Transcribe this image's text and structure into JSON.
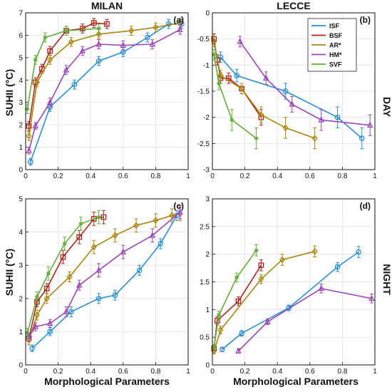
{
  "figure": {
    "ylabel": "SUHII (°C)",
    "xlabel": "Morphological Parameters",
    "day_label": "DAY",
    "night_label": "NIGHT"
  },
  "legend": [
    "ISF",
    "BSF",
    "AR*",
    "HM*",
    "SVF"
  ],
  "colors": {
    "ISF": "#2a8fd6",
    "BSF": "#a8271f",
    "AR*": "#a9860f",
    "HM*": "#9a46b5",
    "SVF": "#64ad3a"
  },
  "chart_data": [
    {
      "type": "line",
      "panel": "a",
      "title": "MILAN",
      "letter": "(a)",
      "xlim": [
        0,
        1
      ],
      "ylim": [
        0,
        7
      ],
      "xticks": [
        0,
        0.2,
        0.4,
        0.6,
        0.8,
        1
      ],
      "xtick_labels": [
        "0",
        "0.2",
        "0.4",
        "0.6",
        "0.8",
        "1"
      ],
      "yticks": [
        0,
        1,
        2,
        3,
        4,
        5,
        6,
        7
      ],
      "ytick_labels": [
        "0",
        "1",
        "2",
        "3",
        "4",
        "5",
        "6",
        "7"
      ],
      "series": [
        {
          "name": "ISF",
          "x": [
            0.03,
            0.15,
            0.3,
            0.45,
            0.6,
            0.75,
            0.88,
            0.96
          ],
          "y": [
            0.35,
            2.8,
            3.8,
            4.85,
            5.25,
            5.9,
            6.5,
            6.5
          ],
          "err": [
            0.15,
            0.2,
            0.2,
            0.2,
            0.2,
            0.2,
            0.2,
            0.2
          ]
        },
        {
          "name": "BSF",
          "x": [
            0.02,
            0.06,
            0.1,
            0.15,
            0.25,
            0.35,
            0.42,
            0.5
          ],
          "y": [
            1.95,
            3.9,
            4.5,
            5.3,
            6.2,
            6.3,
            6.55,
            6.5
          ],
          "err": [
            0.2,
            0.2,
            0.2,
            0.2,
            0.2,
            0.2,
            0.2,
            0.2
          ]
        },
        {
          "name": "AR*",
          "x": [
            0.02,
            0.07,
            0.15,
            0.28,
            0.45,
            0.65,
            0.8,
            0.95
          ],
          "y": [
            1.5,
            3.9,
            4.9,
            5.7,
            6.05,
            6.2,
            6.35,
            6.55
          ],
          "err": [
            0.2,
            0.2,
            0.2,
            0.2,
            0.2,
            0.2,
            0.2,
            0.2
          ]
        },
        {
          "name": "HM*",
          "x": [
            0.02,
            0.06,
            0.15,
            0.25,
            0.35,
            0.45,
            0.6,
            0.78,
            0.95
          ],
          "y": [
            0.85,
            1.95,
            3.0,
            4.45,
            5.3,
            5.6,
            5.55,
            5.6,
            6.25
          ],
          "err": [
            0.15,
            0.15,
            0.2,
            0.2,
            0.2,
            0.2,
            0.2,
            0.2,
            0.2
          ]
        },
        {
          "name": "SVF",
          "x": [
            0.01,
            0.06,
            0.12,
            0.25,
            0.45
          ],
          "y": [
            2.7,
            4.9,
            5.9,
            6.2,
            6.3
          ],
          "err": [
            0.2,
            0.2,
            0.2,
            0.2,
            0.2
          ]
        }
      ]
    },
    {
      "type": "line",
      "panel": "b",
      "title": "LECCE",
      "letter": "(b)",
      "xlim": [
        0,
        1
      ],
      "ylim": [
        -3,
        0
      ],
      "xticks": [
        0,
        0.2,
        0.4,
        0.6,
        0.8,
        1
      ],
      "xtick_labels": [
        "0",
        "0.2",
        "0.4",
        "0.6",
        "0.8",
        "1"
      ],
      "yticks": [
        -3,
        -2.5,
        -2,
        -1.5,
        -1,
        -0.5,
        0
      ],
      "ytick_labels": [
        "-3",
        "-2.5",
        "-2",
        "-1.5",
        "-1",
        "-0.5",
        "0"
      ],
      "series": [
        {
          "name": "ISF",
          "x": [
            0.05,
            0.15,
            0.45,
            0.77,
            0.92
          ],
          "y": [
            -0.85,
            -1.2,
            -1.5,
            -2.0,
            -2.4
          ],
          "err": [
            0.1,
            0.12,
            0.15,
            0.2,
            0.2
          ]
        },
        {
          "name": "BSF",
          "x": [
            0.01,
            0.03,
            0.05,
            0.1,
            0.18,
            0.3
          ],
          "y": [
            -0.5,
            -0.9,
            -1.25,
            -1.25,
            -1.45,
            -2.0
          ],
          "err": [
            0.1,
            0.1,
            0.1,
            0.1,
            0.1,
            0.15
          ]
        },
        {
          "name": "AR*",
          "x": [
            0.01,
            0.05,
            0.18,
            0.3,
            0.45,
            0.63
          ],
          "y": [
            -0.55,
            -1.2,
            -1.45,
            -1.95,
            -2.2,
            -2.4
          ],
          "err": [
            0.1,
            0.1,
            0.1,
            0.15,
            0.2,
            0.2
          ]
        },
        {
          "name": "HM*",
          "x": [
            0.17,
            0.33,
            0.49,
            0.67,
            0.97
          ],
          "y": [
            -0.55,
            -1.25,
            -1.75,
            -2.05,
            -2.15
          ],
          "err": [
            0.1,
            0.12,
            0.15,
            0.2,
            0.2
          ]
        },
        {
          "name": "SVF",
          "x": [
            0.01,
            0.04,
            0.12,
            0.27
          ],
          "y": [
            -0.8,
            -1.35,
            -2.05,
            -2.4
          ],
          "err": [
            0.1,
            0.12,
            0.2,
            0.2
          ]
        }
      ]
    },
    {
      "type": "line",
      "panel": "c",
      "title": "",
      "letter": "(c)",
      "xlim": [
        0,
        1
      ],
      "ylim": [
        0,
        5
      ],
      "xticks": [
        0,
        0.2,
        0.4,
        0.6,
        0.8,
        1
      ],
      "xtick_labels": [
        "0",
        "0.2",
        "0.4",
        "0.6",
        "0.8",
        "1"
      ],
      "yticks": [
        0,
        1,
        2,
        3,
        4,
        5
      ],
      "ytick_labels": [
        "0",
        "1",
        "2",
        "3",
        "4",
        "5"
      ],
      "series": [
        {
          "name": "ISF",
          "x": [
            0.04,
            0.15,
            0.28,
            0.45,
            0.55,
            0.7,
            0.83,
            0.93
          ],
          "y": [
            0.5,
            1.0,
            1.6,
            2.0,
            2.1,
            2.85,
            3.65,
            4.5
          ],
          "err": [
            0.1,
            0.12,
            0.15,
            0.15,
            0.15,
            0.15,
            0.15,
            0.15
          ]
        },
        {
          "name": "BSF",
          "x": [
            0.02,
            0.07,
            0.13,
            0.23,
            0.33,
            0.42,
            0.48
          ],
          "y": [
            0.8,
            1.9,
            2.3,
            3.25,
            3.85,
            4.4,
            4.45
          ],
          "err": [
            0.1,
            0.15,
            0.15,
            0.2,
            0.2,
            0.2,
            0.2
          ]
        },
        {
          "name": "AR*",
          "x": [
            0.02,
            0.07,
            0.13,
            0.27,
            0.42,
            0.55,
            0.68,
            0.8,
            0.9,
            0.95
          ],
          "y": [
            0.75,
            1.5,
            2.0,
            2.65,
            3.55,
            3.9,
            4.2,
            4.35,
            4.5,
            4.55
          ],
          "err": [
            0.15,
            0.15,
            0.15,
            0.15,
            0.2,
            0.2,
            0.2,
            0.2,
            0.2,
            0.2
          ]
        },
        {
          "name": "HM*",
          "x": [
            0.02,
            0.06,
            0.15,
            0.25,
            0.33,
            0.45,
            0.6,
            0.78,
            0.95
          ],
          "y": [
            0.85,
            1.15,
            1.25,
            1.6,
            2.4,
            2.85,
            3.4,
            3.9,
            4.6
          ],
          "err": [
            0.12,
            0.12,
            0.12,
            0.15,
            0.15,
            0.2,
            0.2,
            0.2,
            0.2
          ]
        },
        {
          "name": "SVF",
          "x": [
            0.01,
            0.07,
            0.14,
            0.24,
            0.34,
            0.45
          ],
          "y": [
            0.95,
            2.05,
            2.75,
            3.65,
            4.25,
            4.45
          ],
          "err": [
            0.15,
            0.15,
            0.2,
            0.2,
            0.2,
            0.2
          ]
        }
      ]
    },
    {
      "type": "line",
      "panel": "d",
      "title": "",
      "letter": "(d)",
      "xlim": [
        0,
        1
      ],
      "ylim": [
        0,
        3
      ],
      "xticks": [
        0,
        0.2,
        0.4,
        0.6,
        0.8,
        1
      ],
      "xtick_labels": [
        "0",
        "0.2",
        "0.4",
        "0.6",
        "0.8",
        "1"
      ],
      "yticks": [
        0,
        0.5,
        1,
        1.5,
        2,
        2.5,
        3
      ],
      "ytick_labels": [
        "0",
        "0.5",
        "1",
        "1.5",
        "2",
        "2.5",
        "3"
      ],
      "series": [
        {
          "name": "ISF",
          "x": [
            0.06,
            0.18,
            0.47,
            0.77,
            0.9
          ],
          "y": [
            0.28,
            0.57,
            1.03,
            1.77,
            2.04
          ],
          "err": [
            0.04,
            0.05,
            0.05,
            0.08,
            0.1
          ]
        },
        {
          "name": "BSF",
          "x": [
            0.01,
            0.03,
            0.16,
            0.3
          ],
          "y": [
            0.3,
            0.8,
            1.15,
            1.8
          ],
          "err": [
            0.05,
            0.07,
            0.08,
            0.1
          ]
        },
        {
          "name": "AR*",
          "x": [
            0.01,
            0.05,
            0.3,
            0.43,
            0.63
          ],
          "y": [
            0.25,
            0.63,
            1.55,
            1.9,
            2.05
          ],
          "err": [
            0.05,
            0.07,
            0.08,
            0.1,
            0.1
          ]
        },
        {
          "name": "HM*",
          "x": [
            0.16,
            0.34,
            0.67,
            0.98
          ],
          "y": [
            0.25,
            0.78,
            1.38,
            1.2
          ],
          "err": [
            0.04,
            0.05,
            0.08,
            0.08
          ]
        },
        {
          "name": "SVF",
          "x": [
            0.01,
            0.04,
            0.15,
            0.27
          ],
          "y": [
            0.32,
            0.9,
            1.58,
            2.07
          ],
          "err": [
            0.05,
            0.07,
            0.08,
            0.1
          ]
        }
      ]
    }
  ]
}
